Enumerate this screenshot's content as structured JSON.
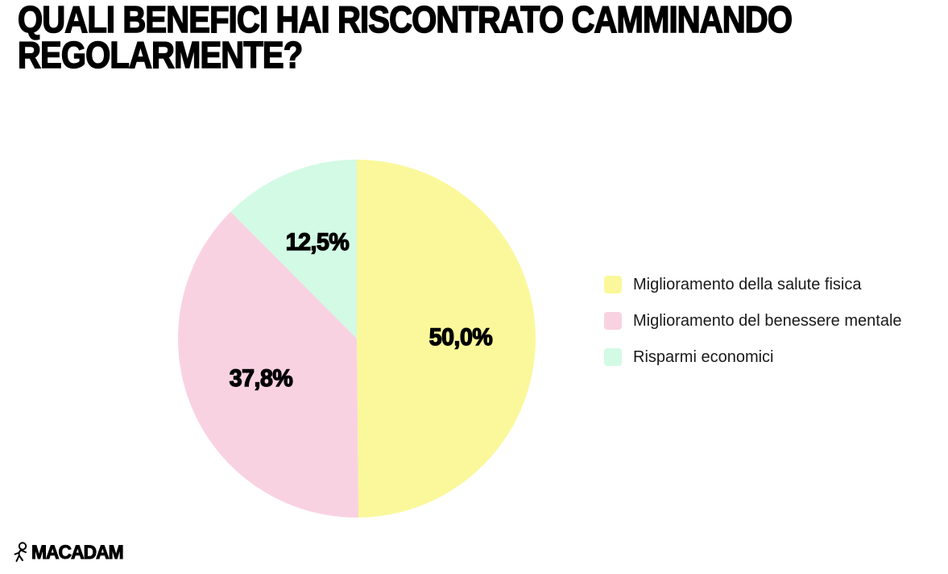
{
  "page": {
    "background_color": "#ffffff",
    "title_line1": "QUALI BENEFICI HAI RISCONTRATO CAMMINANDO",
    "title_line2": "REGOLARMENTE?",
    "title_color": "#000000"
  },
  "brand": {
    "logo_text": "MACADAM",
    "logo_icon": "walking-mascot-icon",
    "logo_color": "#000000"
  },
  "chart_data": {
    "type": "pie",
    "title": "Quali benefici hai riscontrato camminando regolarmente?",
    "direction": "clockwise",
    "start_angle": "12-oclock",
    "legend_position": "right",
    "label_text_color": "#000000",
    "slices": [
      {
        "label": "Miglioramento della salute fisica",
        "value": 50.0,
        "display_value": "50,0%",
        "color": "#FAF89B"
      },
      {
        "label": "Miglioramento del benessere mentale",
        "value": 37.8,
        "display_value": "37,8%",
        "color": "#F9D2E2"
      },
      {
        "label": "Risparmi economici",
        "value": 12.5,
        "display_value": "12,5%",
        "color": "#D2FAE5"
      }
    ]
  }
}
